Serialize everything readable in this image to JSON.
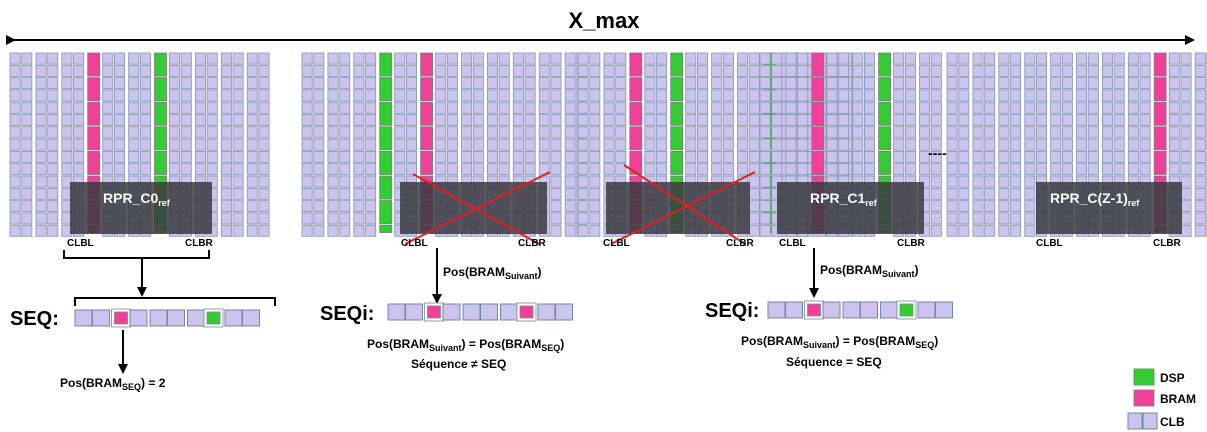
{
  "title": "X_max",
  "regions": [
    {
      "name": "RPR_C0",
      "sub": "ref"
    },
    {
      "name": "RPR_C1",
      "sub": "ref"
    },
    {
      "name": "RPR_C(Z-1)",
      "sub": "ref"
    }
  ],
  "clb_left": "CLBL",
  "clb_right": "CLBR",
  "dots": "----",
  "seq_ref": {
    "label": "SEQ:",
    "cells": [
      "CLB",
      "CLB",
      "BRAM",
      "CLB",
      "CLB",
      "CLB",
      "CLB",
      "DSP",
      "CLB",
      "CLB"
    ],
    "result": {
      "prefix": "Pos(BRAM",
      "sub": "SEQ",
      "suffix": ") = 2"
    }
  },
  "seq_mid": {
    "label": "SEQi:",
    "cells": [
      "CLB",
      "CLB",
      "BRAM",
      "CLB",
      "CLB",
      "CLB",
      "CLB",
      "BRAM",
      "CLB",
      "CLB"
    ],
    "arrow_text": {
      "prefix": "Pos(BRAM",
      "sub": "Suivant",
      "suffix": ")"
    },
    "eq": {
      "p1": "Pos(BRAM",
      "s1": "Suivant",
      "p2": ") = Pos(BRAM",
      "s2": "SEQ",
      "p3": ")"
    },
    "result": "Séquence ≠ SEQ"
  },
  "seq_right": {
    "label": "SEQi:",
    "cells": [
      "CLB",
      "CLB",
      "BRAM",
      "CLB",
      "CLB",
      "CLB",
      "CLB",
      "DSP",
      "CLB",
      "CLB"
    ],
    "arrow_text": {
      "prefix": "Pos(BRAM",
      "sub": "Suivant",
      "suffix": ")"
    },
    "eq": {
      "p1": "Pos(BRAM",
      "s1": "Suivant",
      "p2": ") = Pos(BRAM",
      "s2": "SEQ",
      "p3": ")"
    },
    "result": "Séquence = SEQ"
  },
  "legend": [
    {
      "label": "DSP",
      "color": "#33cc33"
    },
    {
      "label": "BRAM",
      "color": "#f0409a"
    },
    {
      "label": "CLB",
      "color": "#ccc4ee"
    }
  ],
  "colors": {
    "clb": "#ccc4ee",
    "bram": "#f0409a",
    "dsp": "#33cc33",
    "region": "#3a3a40",
    "cross": "#e02020"
  }
}
